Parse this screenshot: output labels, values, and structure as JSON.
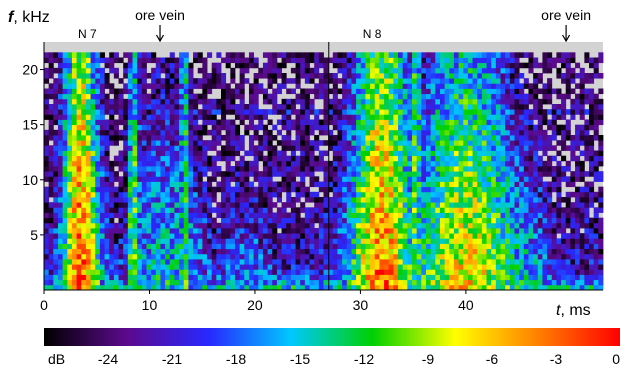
{
  "chart_data": {
    "type": "heatmap",
    "title": "",
    "xlabel": {
      "symbol": "t",
      "unit": ", ms"
    },
    "ylabel": {
      "symbol": "f",
      "unit": ", kHz"
    },
    "xlim": [
      0,
      53
    ],
    "ylim": [
      0,
      22.5
    ],
    "x_ticks": [
      0,
      10,
      20,
      30,
      40
    ],
    "y_ticks": [
      5,
      10,
      15,
      20
    ],
    "panels": [
      {
        "label": "N 7",
        "x_range": [
          0,
          27
        ]
      },
      {
        "label": "N 8",
        "x_range": [
          27,
          53
        ]
      }
    ],
    "annotations": [
      {
        "text": "ore vein",
        "x": 11
      },
      {
        "text": "ore vein",
        "x": 49.5
      }
    ],
    "colorbar": {
      "label": "dB",
      "min": -27,
      "max": 0,
      "ticks": [
        -24,
        -21,
        -18,
        -15,
        -12,
        -9,
        -6,
        -3,
        0
      ],
      "colors": [
        "#000000",
        "#5c0a8c",
        "#2828ff",
        "#00c8ff",
        "#00d000",
        "#ffff00",
        "#ff8000",
        "#ff0000"
      ]
    },
    "background_color": "#d3d3d3",
    "below_threshold_db": -27,
    "max_frequency_khz": 21.5,
    "gray_above_khz": 21.5
  }
}
